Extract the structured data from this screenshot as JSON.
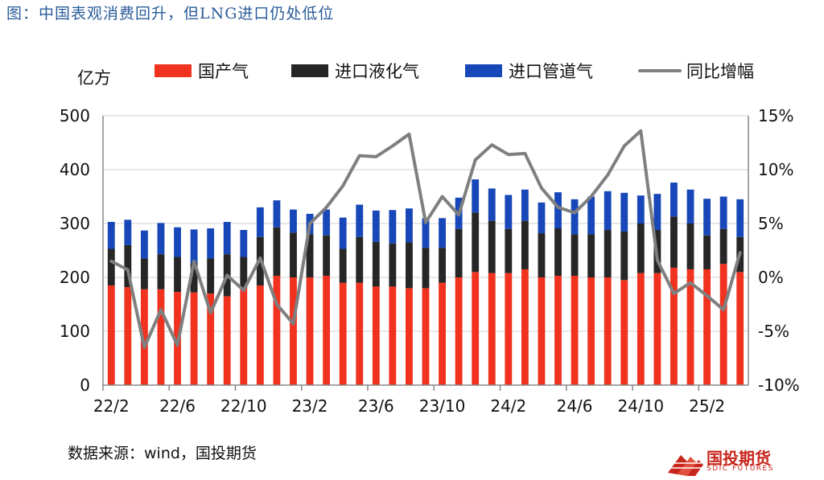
{
  "figure_title": "图：中国表观消费回升，但LNG进口仍处低位",
  "source_text": "数据来源：wind，国投期货",
  "logo": {
    "name": "国投期货",
    "english": "SDIC FUTURES"
  },
  "colors": {
    "domestic": "#f0321e",
    "lng": "#262626",
    "pipeline": "#1747b8",
    "yoy": "#7f7f7f",
    "axis": "#888888",
    "grid": "#d9d9d9",
    "title": "#2a5c9a"
  },
  "chart_data": {
    "type": "bar",
    "stacked": true,
    "left_unit": "亿方",
    "ylim": [
      0,
      500
    ],
    "y_ticks": [
      0,
      100,
      200,
      300,
      400,
      500
    ],
    "y2lim": [
      -10,
      15
    ],
    "y2_ticks": [
      "-10%",
      "-5%",
      "0%",
      "5%",
      "10%",
      "15%"
    ],
    "y2_tick_values": [
      -10,
      -5,
      0,
      5,
      10,
      15
    ],
    "x_tick_labels": [
      "22/2",
      "22/6",
      "22/10",
      "23/2",
      "23/6",
      "23/10",
      "24/2",
      "24/6",
      "24/10",
      "25/2"
    ],
    "categories": [
      "22/2",
      "22/3",
      "22/4",
      "22/5",
      "22/6",
      "22/7",
      "22/8",
      "22/9",
      "22/10",
      "22/11",
      "22/12",
      "23/1",
      "23/2",
      "23/3",
      "23/4",
      "23/5",
      "23/6",
      "23/7",
      "23/8",
      "23/9",
      "23/10",
      "23/11",
      "23/12",
      "24/1",
      "24/2",
      "24/3",
      "24/4",
      "24/5",
      "24/6",
      "24/7",
      "24/8",
      "24/9",
      "24/10",
      "24/11",
      "24/12",
      "25/1",
      "25/2",
      "25/3",
      "25/4"
    ],
    "legend_position": "top",
    "grid": true,
    "series": [
      {
        "name": "国产气",
        "type": "bar",
        "axis": "left",
        "values": [
          185,
          182,
          178,
          178,
          173,
          172,
          170,
          165,
          180,
          185,
          203,
          200,
          200,
          203,
          190,
          190,
          183,
          183,
          180,
          180,
          190,
          200,
          210,
          208,
          208,
          215,
          200,
          203,
          203,
          200,
          200,
          195,
          208,
          208,
          218,
          215,
          215,
          225,
          210
        ]
      },
      {
        "name": "进口液化气",
        "type": "bar",
        "axis": "left",
        "values": [
          68,
          78,
          57,
          65,
          65,
          55,
          65,
          78,
          58,
          90,
          90,
          83,
          80,
          75,
          63,
          85,
          83,
          80,
          85,
          75,
          65,
          90,
          110,
          97,
          82,
          90,
          82,
          88,
          77,
          80,
          88,
          90,
          92,
          80,
          95,
          85,
          63,
          65,
          65
        ]
      },
      {
        "name": "进口管道气",
        "type": "bar",
        "axis": "left",
        "values": [
          50,
          47,
          52,
          58,
          55,
          62,
          56,
          60,
          50,
          55,
          50,
          43,
          38,
          48,
          58,
          60,
          58,
          62,
          63,
          55,
          55,
          58,
          62,
          60,
          63,
          58,
          57,
          67,
          65,
          70,
          72,
          72,
          52,
          67,
          63,
          63,
          68,
          60,
          70
        ]
      },
      {
        "name": "同比增幅",
        "type": "line",
        "axis": "right",
        "values": [
          1.5,
          0.7,
          -6.5,
          -3.0,
          -6.3,
          1.5,
          -3.3,
          0.2,
          -1.2,
          1.8,
          -2.5,
          -4.3,
          5.0,
          6.5,
          8.5,
          11.3,
          11.2,
          12.2,
          13.3,
          5.1,
          7.5,
          5.8,
          10.9,
          12.3,
          11.4,
          11.5,
          8.3,
          6.5,
          6.0,
          7.5,
          9.5,
          12.2,
          13.6,
          1.6,
          -1.5,
          -0.5,
          -1.7,
          -3.0,
          2.3
        ]
      }
    ]
  }
}
